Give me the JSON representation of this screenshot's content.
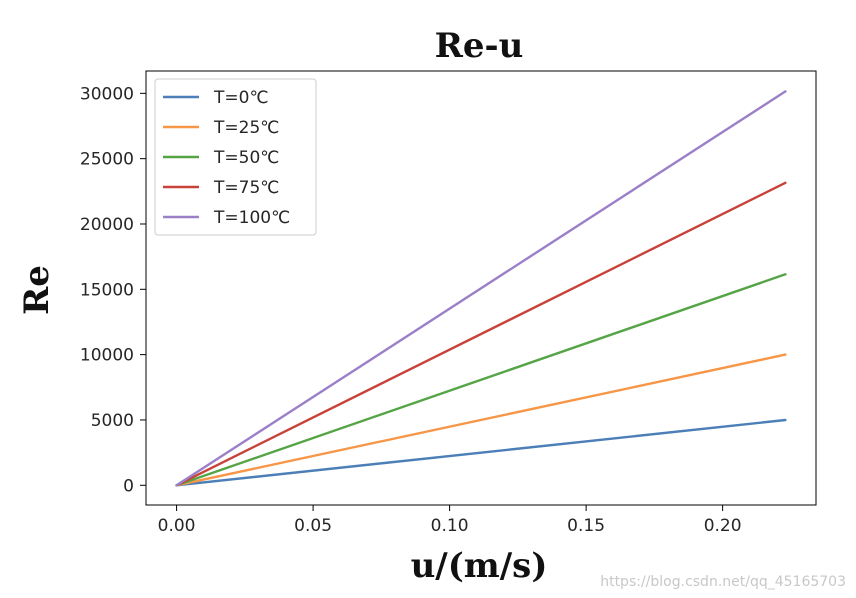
{
  "chart_data": {
    "type": "line",
    "title": "Re-u",
    "xlabel": "u/(m/s)",
    "ylabel": "Re",
    "xlim": [
      -0.0112,
      0.2342
    ],
    "ylim": [
      -1510,
      31710
    ],
    "xticks": [
      0.0,
      0.05,
      0.1,
      0.15,
      0.2
    ],
    "xtick_labels": [
      "0.00",
      "0.05",
      "0.10",
      "0.15",
      "0.20"
    ],
    "yticks": [
      0,
      5000,
      10000,
      15000,
      20000,
      25000,
      30000
    ],
    "ytick_labels": [
      "0",
      "5000",
      "10000",
      "15000",
      "20000",
      "25000",
      "30000"
    ],
    "grid": false,
    "legend_position": "upper-left",
    "series": [
      {
        "name": "T=0℃",
        "color": "#4c7fb8",
        "x": [
          0,
          0.223
        ],
        "y": [
          0,
          5000
        ]
      },
      {
        "name": "T=25℃",
        "color": "#f79646",
        "x": [
          0,
          0.223
        ],
        "y": [
          0,
          10000
        ]
      },
      {
        "name": "T=50℃",
        "color": "#55a546",
        "x": [
          0,
          0.223
        ],
        "y": [
          0,
          16150
        ]
      },
      {
        "name": "T=75℃",
        "color": "#c8423a",
        "x": [
          0,
          0.223
        ],
        "y": [
          0,
          23150
        ]
      },
      {
        "name": "T=100℃",
        "color": "#9b7fc8",
        "x": [
          0,
          0.223
        ],
        "y": [
          0,
          30150
        ]
      }
    ]
  },
  "watermark": "https://blog.csdn.net/qq_45165703"
}
